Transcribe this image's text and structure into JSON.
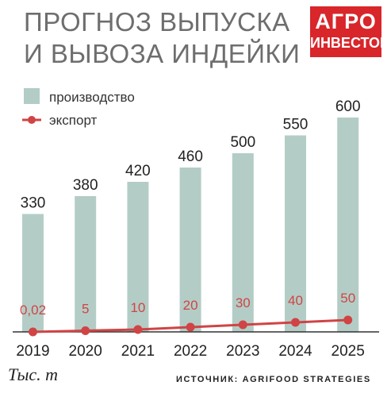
{
  "title_lines": [
    "ПРОГНОЗ ВЫПУСКА",
    "И ВЫВОЗА ИНДЕЙКИ"
  ],
  "logo": {
    "line1": "АГРО",
    "line2": "ИНВЕСТОР"
  },
  "footer": {
    "unit": "Тыс. т",
    "source": "ИСТОЧНИК: AGRIFOOD STRATEGIES"
  },
  "colors": {
    "bar": "#b3cdc6",
    "line": "#d04445",
    "axis": "#333333",
    "logo": "#d8262b"
  },
  "chart_data": {
    "type": "bar",
    "categories": [
      "2019",
      "2020",
      "2021",
      "2022",
      "2023",
      "2024",
      "2025"
    ],
    "series": [
      {
        "name": "производство",
        "type": "bar",
        "values": [
          330,
          380,
          420,
          460,
          500,
          550,
          600
        ],
        "labels": [
          "330",
          "380",
          "420",
          "460",
          "500",
          "550",
          "600"
        ]
      },
      {
        "name": "экспорт",
        "type": "line",
        "values": [
          0.02,
          5,
          10,
          20,
          30,
          40,
          50
        ],
        "labels": [
          "0,02",
          "5",
          "10",
          "20",
          "30",
          "40",
          "50"
        ]
      }
    ],
    "ylim": [
      0,
      600
    ],
    "grid": false,
    "legend_position": "top-left"
  }
}
